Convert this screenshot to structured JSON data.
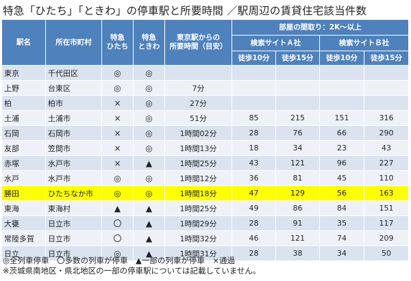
{
  "title": "特急「ひたち」「ときわ」の停車駅と所要時間 ／駅周辺の賃貸住宅該当件数",
  "headers": {
    "station": "駅名",
    "city": "所在市町村",
    "hitachi": [
      "特急",
      "ひたち"
    ],
    "tokiwa": [
      "特急",
      "ときわ"
    ],
    "time": [
      "東京駅からの",
      "所要時間（目安）"
    ],
    "rooms": "部屋の間取り：2K～以上",
    "siteA": "検索サイトＡ社",
    "siteB": "検索サイトＢ社",
    "walk10": "徒歩10分",
    "walk15": "徒歩15分"
  },
  "rows": [
    {
      "station": "東京",
      "city": "千代田区",
      "hitachi": "◎",
      "tokiwa": "◎",
      "time": "",
      "a10": "",
      "a15": "",
      "b10": "",
      "b15": ""
    },
    {
      "station": "上野",
      "city": "台東区",
      "hitachi": "◎",
      "tokiwa": "◎",
      "time": "7分",
      "a10": "",
      "a15": "",
      "b10": "",
      "b15": ""
    },
    {
      "station": "柏",
      "city": "柏市",
      "hitachi": "×",
      "tokiwa": "◎",
      "time": "27分",
      "a10": "",
      "a15": "",
      "b10": "",
      "b15": ""
    },
    {
      "station": "土浦",
      "city": "土浦市",
      "hitachi": "×",
      "tokiwa": "◎",
      "time": "51分",
      "a10": "85",
      "a15": "215",
      "b10": "151",
      "b15": "316"
    },
    {
      "station": "石岡",
      "city": "石岡市",
      "hitachi": "×",
      "tokiwa": "◎",
      "time": "1時間02分",
      "a10": "28",
      "a15": "76",
      "b10": "66",
      "b15": "290"
    },
    {
      "station": "友部",
      "city": "笠間市",
      "hitachi": "×",
      "tokiwa": "◎",
      "time": "1時間13分",
      "a10": "18",
      "a15": "34",
      "b10": "23",
      "b15": "43"
    },
    {
      "station": "赤塚",
      "city": "水戸市",
      "hitachi": "×",
      "tokiwa": "▲",
      "time": "1時間25分",
      "a10": "43",
      "a15": "121",
      "b10": "96",
      "b15": "227"
    },
    {
      "station": "水戸",
      "city": "水戸市",
      "hitachi": "◎",
      "tokiwa": "◎",
      "time": "1時間12分",
      "a10": "36",
      "a15": "81",
      "b10": "45",
      "b15": "110"
    },
    {
      "station": "勝田",
      "city": "ひたちなか市",
      "hitachi": "◎",
      "tokiwa": "◎",
      "time": "1時間18分",
      "a10": "47",
      "a15": "129",
      "b10": "56",
      "b15": "163",
      "highlight": true
    },
    {
      "station": "東海",
      "city": "東海村",
      "hitachi": "▲",
      "tokiwa": "▲",
      "time": "1時間25分",
      "a10": "49",
      "a15": "86",
      "b10": "84",
      "b15": "151"
    },
    {
      "station": "大甕",
      "city": "日立市",
      "hitachi": "〇",
      "tokiwa": "▲",
      "time": "1時間29分",
      "a10": "28",
      "a15": "91",
      "b10": "35",
      "b15": "117"
    },
    {
      "station": "常陸多賀",
      "city": "日立市",
      "hitachi": "〇",
      "tokiwa": "▲",
      "time": "1時間32分",
      "a10": "46",
      "a15": "121",
      "b10": "74",
      "b15": "209"
    },
    {
      "station": "日立",
      "city": "日立市",
      "hitachi": "◎",
      "tokiwa": "▲",
      "time": "1時間31分",
      "a10": "28",
      "a15": "38",
      "b10": "34",
      "b15": "50"
    }
  ],
  "notes": [
    "◎全列車停車　〇多数の列車が停車　▲一部の列車が停車　×通過",
    "※茨城県南地区・県北地区の一部の停車駅については記載していません。"
  ]
}
